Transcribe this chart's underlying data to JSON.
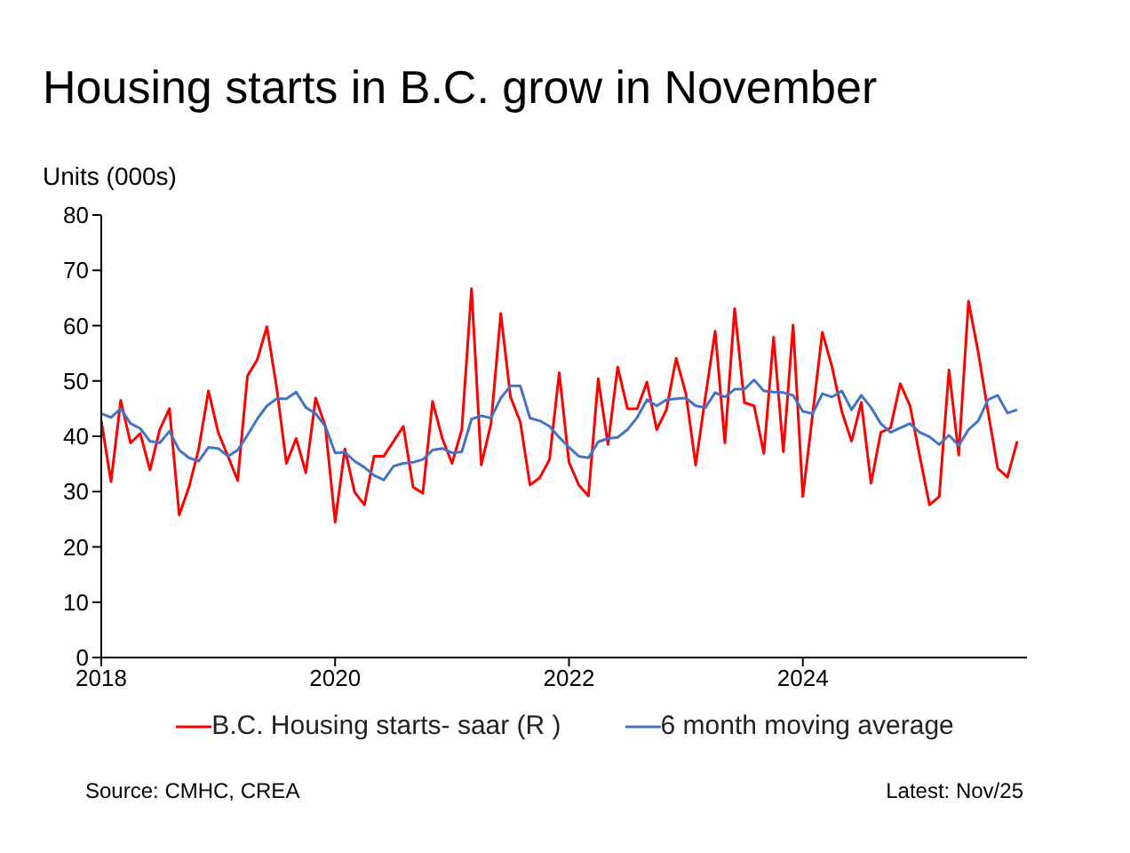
{
  "chart_data": {
    "type": "line",
    "title": "Housing starts in B.C. grow in November",
    "ylabel": "Units (000s)",
    "x": [
      "2018-01",
      "2018-02",
      "2018-03",
      "2018-04",
      "2018-05",
      "2018-06",
      "2018-07",
      "2018-08",
      "2018-09",
      "2018-10",
      "2018-11",
      "2018-12",
      "2019-01",
      "2019-02",
      "2019-03",
      "2019-04",
      "2019-05",
      "2019-06",
      "2019-07",
      "2019-08",
      "2019-09",
      "2019-10",
      "2019-11",
      "2019-12",
      "2020-01",
      "2020-02",
      "2020-03",
      "2020-04",
      "2020-05",
      "2020-06",
      "2020-07",
      "2020-08",
      "2020-09",
      "2020-10",
      "2020-11",
      "2020-12",
      "2021-01",
      "2021-02",
      "2021-03",
      "2021-04",
      "2021-05",
      "2021-06",
      "2021-07",
      "2021-08",
      "2021-09",
      "2021-10",
      "2021-11",
      "2021-12",
      "2022-01",
      "2022-02",
      "2022-03",
      "2022-04",
      "2022-05",
      "2022-06",
      "2022-07",
      "2022-08",
      "2022-09",
      "2022-10",
      "2022-11",
      "2022-12",
      "2023-01",
      "2023-02",
      "2023-03",
      "2023-04",
      "2023-05",
      "2023-06",
      "2023-07",
      "2023-08",
      "2023-09",
      "2023-10",
      "2023-11",
      "2023-12",
      "2024-01",
      "2024-02",
      "2024-03",
      "2024-04",
      "2024-05",
      "2024-06",
      "2024-07",
      "2024-08",
      "2024-09",
      "2024-10",
      "2024-11",
      "2024-12",
      "2025-01",
      "2025-02",
      "2025-03",
      "2025-04",
      "2025-05",
      "2025-06",
      "2025-07",
      "2025-08",
      "2025-09",
      "2025-10",
      "2025-11"
    ],
    "series": [
      {
        "name": "B.C. Housing starts- saar (R )",
        "color": "#ff0000",
        "values": [
          42.8,
          31.8,
          46.5,
          38.8,
          40.5,
          33.9,
          41.2,
          45,
          25.8,
          30.8,
          37.7,
          48.2,
          40.7,
          36.4,
          32,
          50.9,
          53.8,
          59.8,
          48.8,
          35.1,
          39.6,
          33.4,
          46.9,
          41.8,
          24.5,
          37.7,
          29.9,
          27.6,
          36.4,
          36.4,
          39.1,
          41.8,
          30.8,
          29.7,
          46.3,
          39.6,
          35.1,
          41.2,
          66.7,
          34.8,
          42.3,
          62.2,
          47.1,
          42.6,
          31.2,
          32.5,
          35.8,
          51.5,
          35.3,
          31.2,
          29.2,
          50.4,
          38.5,
          52.5,
          45,
          45,
          49.8,
          41.2,
          44.8,
          54.1,
          47.7,
          34.8,
          47.1,
          59,
          38.8,
          63.1,
          46.1,
          45.5,
          36.9,
          57.9,
          37.2,
          60.1,
          29.1,
          43.9,
          58.8,
          52.5,
          44.5,
          39.1,
          46.1,
          31.5,
          40.7,
          41.5,
          49.5,
          45.5,
          36.4,
          27.6,
          29.1,
          52,
          36.6,
          64.4,
          55.2,
          44.5,
          34.2,
          32.6,
          39.1
        ]
      },
      {
        "name": "6 month moving average",
        "color": "#4472c4",
        "values": [
          44.1,
          43.4,
          45,
          42.3,
          41.4,
          39.1,
          38.8,
          40.9,
          37.5,
          36.1,
          35.5,
          38,
          37.8,
          36.4,
          37.5,
          40.2,
          43.1,
          45.5,
          46.8,
          46.8,
          48,
          45.2,
          44.1,
          41.8,
          37,
          37.1,
          35.5,
          34.4,
          32.9,
          32.1,
          34.6,
          35.1,
          35.3,
          35.8,
          37.5,
          37.8,
          37,
          37.2,
          43.1,
          43.7,
          43.3,
          46.9,
          49.1,
          49.1,
          43.3,
          42.8,
          41.8,
          39.8,
          38,
          36.4,
          36.1,
          39,
          39.6,
          39.8,
          41.2,
          43.4,
          46.6,
          45.5,
          46.6,
          46.8,
          46.9,
          45.5,
          45.2,
          47.9,
          47.1,
          48.5,
          48.5,
          50.2,
          48.2,
          48,
          47.9,
          47.4,
          44.5,
          44.1,
          47.7,
          47.1,
          48.2,
          44.8,
          47.4,
          45.2,
          42.3,
          40.7,
          41.5,
          42.3,
          40.7,
          39.9,
          38.5,
          40.2,
          38.3,
          41.2,
          42.8,
          46.6,
          47.4,
          44.2,
          44.8
        ]
      }
    ],
    "xlim": [
      "2018-01",
      "2025-12"
    ],
    "xticks": [
      {
        "value": "2018-01",
        "label": "2018"
      },
      {
        "value": "2020-01",
        "label": "2020"
      },
      {
        "value": "2022-01",
        "label": "2022"
      },
      {
        "value": "2024-01",
        "label": "2024"
      }
    ],
    "ylim": [
      0,
      80
    ],
    "yticks": [
      0,
      10,
      20,
      30,
      40,
      50,
      60,
      70,
      80
    ],
    "grid": false,
    "legend": "bottom",
    "marker": "none",
    "line_style": "solid",
    "annotations": [
      "Source: CMHC, CREA",
      "Latest: Nov/25"
    ]
  }
}
